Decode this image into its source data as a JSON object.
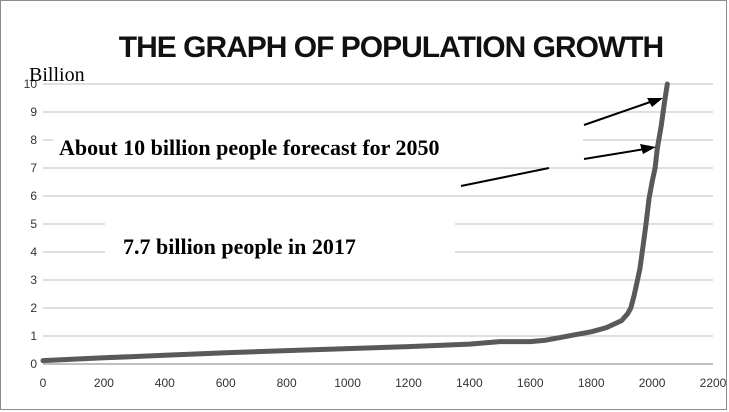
{
  "chart_data": {
    "type": "line",
    "title": "THE GRAPH OF POPULATION GROWTH",
    "ylabel": "Billion",
    "xlabel": "",
    "xlim": [
      0,
      2200
    ],
    "ylim": [
      0,
      10
    ],
    "x_ticks": [
      0,
      200,
      400,
      600,
      800,
      1000,
      1200,
      1400,
      1600,
      1800,
      2000,
      2200
    ],
    "y_ticks": [
      0,
      1,
      2,
      3,
      4,
      5,
      6,
      7,
      8,
      9,
      10
    ],
    "grid": true,
    "legend": "none",
    "series": [
      {
        "line_color": "#595959",
        "x": [
          0,
          200,
          400,
          600,
          800,
          1000,
          1200,
          1400,
          1500,
          1600,
          1650,
          1700,
          1750,
          1800,
          1850,
          1900,
          1920,
          1930,
          1940,
          1950,
          1960,
          1970,
          1980,
          1990,
          2000,
          2010,
          2017,
          2030,
          2040,
          2050
        ],
        "y": [
          0.12,
          0.22,
          0.31,
          0.4,
          0.48,
          0.55,
          0.62,
          0.71,
          0.8,
          0.8,
          0.85,
          0.95,
          1.05,
          1.15,
          1.3,
          1.55,
          1.8,
          2.0,
          2.4,
          2.9,
          3.4,
          4.2,
          5.0,
          5.9,
          6.5,
          7.0,
          7.7,
          8.5,
          9.3,
          10.0
        ]
      }
    ],
    "annotations": [
      {
        "text": "About 10 billion people forecast for 2050",
        "arrow_to": [
          2040,
          9.65
        ]
      },
      {
        "text": "7.7 billion people in 2017",
        "arrow_to": [
          2020,
          7.8
        ]
      }
    ]
  }
}
